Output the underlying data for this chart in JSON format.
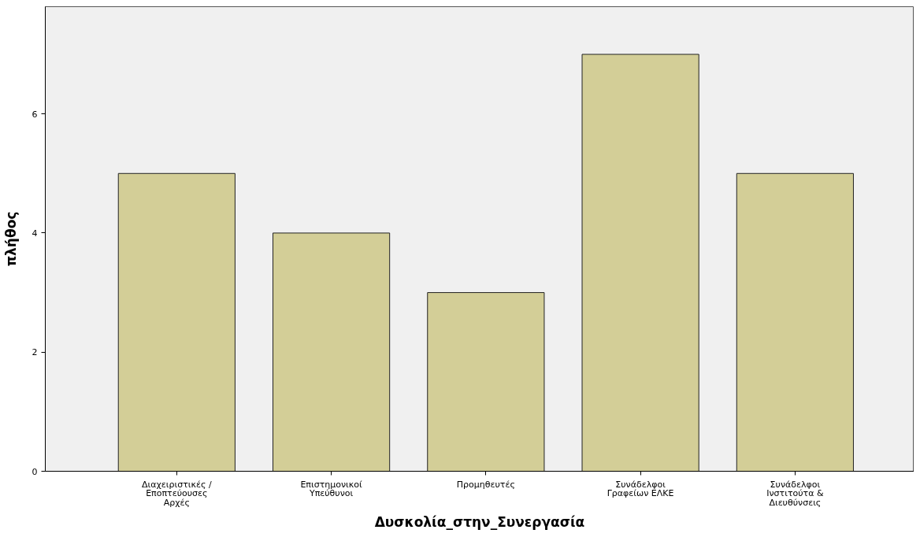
{
  "chart_data": {
    "type": "bar",
    "xlabel": "Δυσκολία_στην_Συνεργασία",
    "ylabel": "πλήθος",
    "categories": [
      "Διαχειριστικές /\nΕποπτεύουσες\nΑρχές",
      "Επιστημονικοί\nΥπεύθυνοι",
      "Προμηθευτές",
      "Συνάδελφοι\nΓραφείων ΕΛΚΕ",
      "Συνάδελφοι\nΙνστιτούτα &\nΔιευθύνσεις"
    ],
    "values": [
      5,
      4,
      3,
      7,
      5
    ],
    "color": "#d3ce97",
    "ylim": [
      0,
      7.8
    ],
    "yticks": [
      0,
      2,
      4,
      6
    ],
    "grid": false
  }
}
